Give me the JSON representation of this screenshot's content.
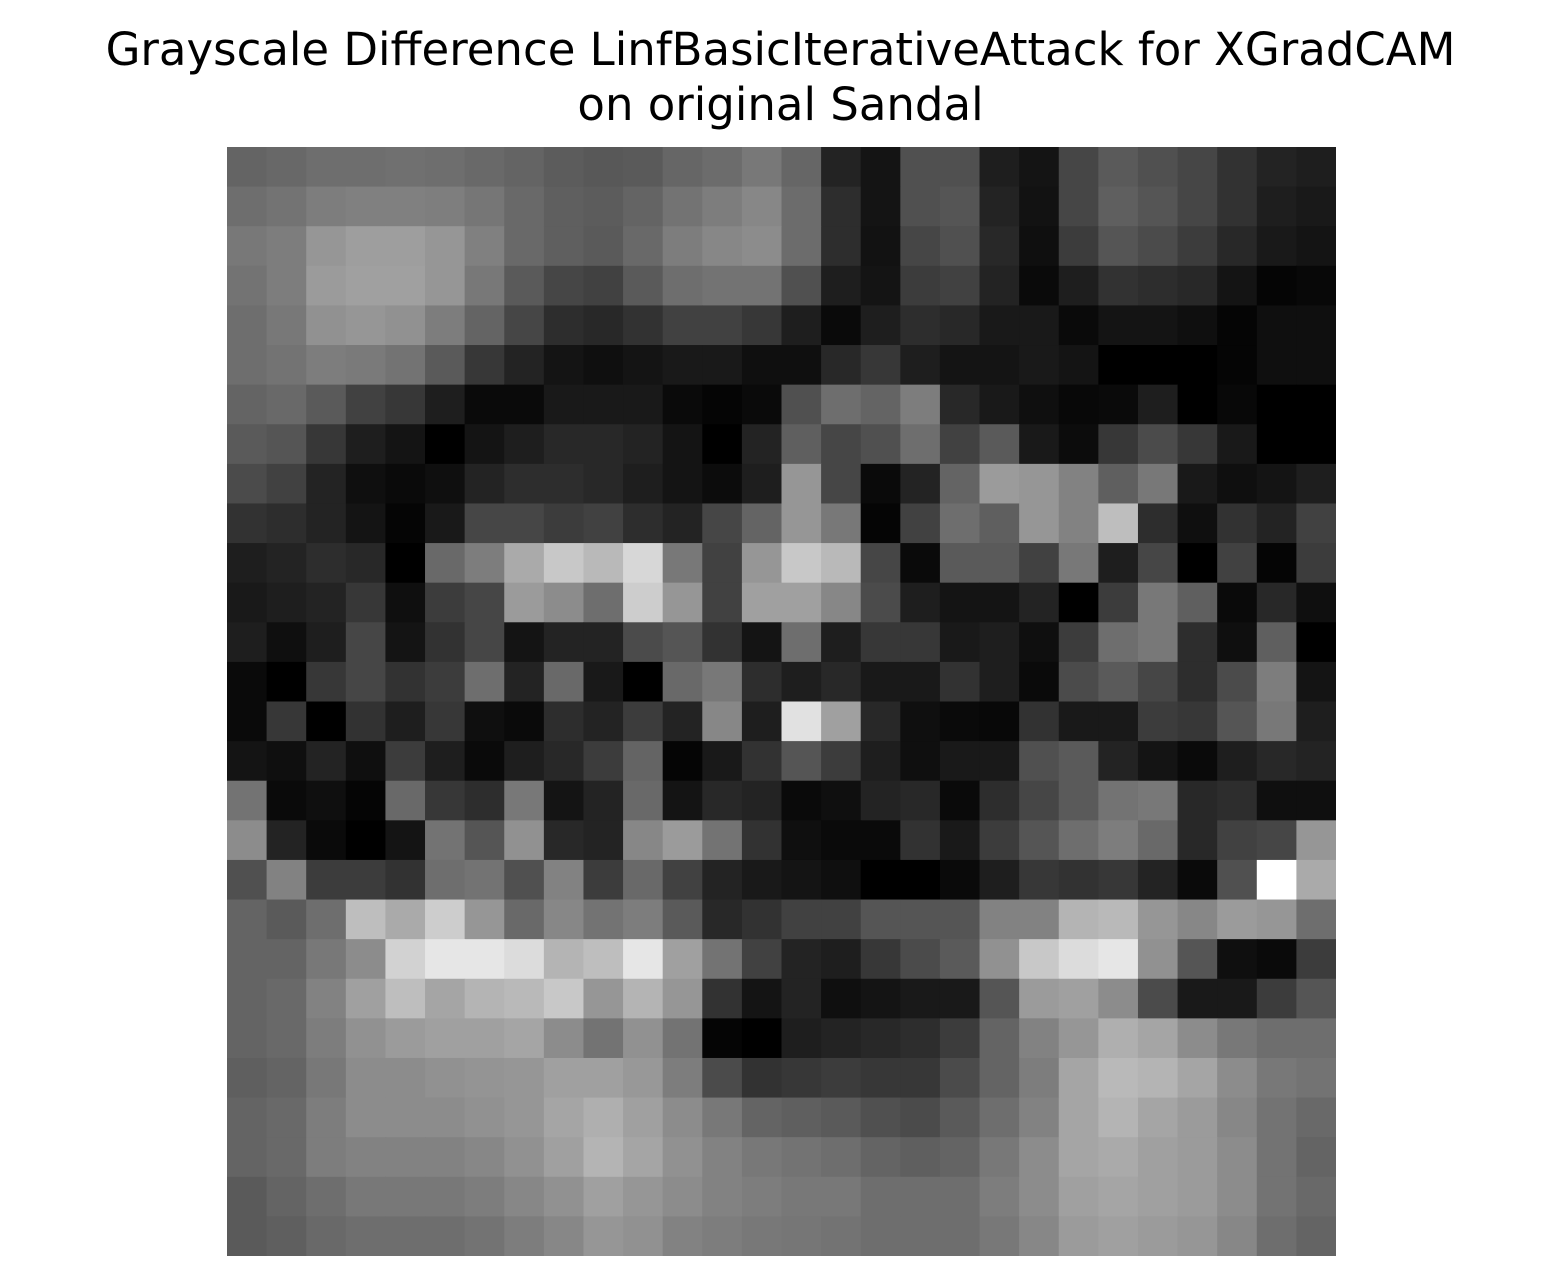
{
  "chart_data": {
    "type": "heatmap",
    "title_lines": [
      "Grayscale Difference LinfBasicIterativeAttack for XGradCAM",
      "on original Sandal"
    ],
    "colormap": "gray",
    "value_range": [
      0,
      255
    ],
    "axes_visible": false,
    "rows": 28,
    "cols": 28,
    "values": [
      [
        100,
        104,
        110,
        110,
        112,
        110,
        105,
        100,
        92,
        88,
        90,
        102,
        108,
        120,
        102,
        35,
        20,
        80,
        80,
        30,
        20,
        70,
        90,
        80,
        70,
        50,
        35,
        30
      ],
      [
        110,
        115,
        125,
        128,
        128,
        126,
        118,
        105,
        95,
        92,
        100,
        115,
        125,
        135,
        108,
        45,
        20,
        80,
        85,
        35,
        18,
        70,
        95,
        85,
        70,
        50,
        30,
        25
      ],
      [
        120,
        125,
        150,
        158,
        158,
        150,
        128,
        105,
        95,
        90,
        105,
        125,
        135,
        140,
        108,
        45,
        18,
        70,
        80,
        40,
        15,
        60,
        85,
        75,
        60,
        40,
        25,
        20
      ],
      [
        115,
        125,
        155,
        160,
        160,
        150,
        120,
        90,
        70,
        65,
        90,
        110,
        115,
        115,
        80,
        30,
        20,
        60,
        65,
        35,
        10,
        30,
        50,
        45,
        40,
        20,
        5,
        8
      ],
      [
        110,
        120,
        145,
        150,
        145,
        125,
        100,
        70,
        45,
        40,
        50,
        65,
        65,
        55,
        30,
        10,
        30,
        45,
        40,
        25,
        25,
        10,
        20,
        20,
        15,
        5,
        15,
        15
      ],
      [
        110,
        115,
        125,
        122,
        115,
        90,
        55,
        35,
        20,
        15,
        20,
        25,
        25,
        15,
        15,
        40,
        55,
        30,
        20,
        20,
        25,
        20,
        0,
        0,
        0,
        5,
        15,
        15
      ],
      [
        100,
        105,
        90,
        65,
        55,
        30,
        10,
        10,
        25,
        25,
        25,
        10,
        5,
        10,
        80,
        110,
        100,
        125,
        40,
        25,
        15,
        8,
        10,
        30,
        0,
        8,
        0,
        0
      ],
      [
        90,
        85,
        55,
        30,
        20,
        0,
        20,
        30,
        40,
        40,
        35,
        20,
        0,
        35,
        95,
        70,
        80,
        110,
        65,
        90,
        25,
        12,
        55,
        75,
        55,
        25,
        0,
        0
      ],
      [
        75,
        65,
        35,
        15,
        10,
        15,
        35,
        45,
        45,
        40,
        30,
        20,
        12,
        30,
        150,
        70,
        10,
        35,
        100,
        155,
        150,
        130,
        95,
        120,
        25,
        15,
        20,
        30
      ],
      [
        50,
        45,
        35,
        20,
        5,
        25,
        70,
        70,
        60,
        65,
        45,
        35,
        70,
        100,
        150,
        120,
        5,
        65,
        110,
        95,
        150,
        130,
        190,
        45,
        15,
        50,
        35,
        65
      ],
      [
        30,
        35,
        45,
        40,
        0,
        105,
        125,
        170,
        200,
        185,
        215,
        120,
        65,
        150,
        200,
        185,
        70,
        10,
        90,
        90,
        65,
        120,
        30,
        70,
        0,
        65,
        5,
        60
      ],
      [
        25,
        30,
        35,
        55,
        15,
        60,
        70,
        155,
        140,
        110,
        205,
        150,
        65,
        160,
        160,
        135,
        75,
        30,
        20,
        20,
        35,
        0,
        60,
        120,
        95,
        10,
        40,
        15
      ],
      [
        30,
        15,
        30,
        70,
        20,
        50,
        70,
        20,
        35,
        35,
        75,
        85,
        50,
        20,
        110,
        30,
        55,
        55,
        25,
        30,
        15,
        60,
        110,
        120,
        45,
        15,
        95,
        0
      ],
      [
        10,
        0,
        55,
        70,
        50,
        60,
        110,
        35,
        105,
        25,
        0,
        105,
        120,
        45,
        30,
        40,
        25,
        25,
        50,
        30,
        10,
        75,
        90,
        70,
        45,
        75,
        125,
        20
      ],
      [
        10,
        55,
        0,
        50,
        30,
        55,
        15,
        10,
        45,
        35,
        60,
        35,
        135,
        30,
        225,
        160,
        40,
        15,
        10,
        8,
        50,
        25,
        25,
        60,
        55,
        85,
        120,
        30
      ],
      [
        20,
        15,
        35,
        15,
        60,
        30,
        10,
        30,
        40,
        60,
        100,
        5,
        25,
        50,
        85,
        60,
        30,
        15,
        25,
        25,
        80,
        90,
        35,
        20,
        10,
        30,
        40,
        35
      ],
      [
        115,
        10,
        15,
        5,
        105,
        55,
        45,
        120,
        20,
        35,
        105,
        20,
        40,
        35,
        10,
        15,
        35,
        40,
        10,
        45,
        70,
        90,
        115,
        120,
        40,
        45,
        15,
        15
      ],
      [
        140,
        35,
        10,
        0,
        20,
        115,
        85,
        145,
        40,
        35,
        135,
        155,
        115,
        50,
        15,
        10,
        10,
        50,
        25,
        60,
        85,
        110,
        125,
        105,
        40,
        65,
        70,
        150
      ],
      [
        80,
        130,
        60,
        60,
        50,
        110,
        115,
        80,
        130,
        60,
        105,
        65,
        35,
        25,
        20,
        15,
        0,
        0,
        10,
        30,
        55,
        50,
        55,
        35,
        10,
        80,
        255,
        170
      ],
      [
        100,
        90,
        110,
        190,
        170,
        205,
        150,
        105,
        135,
        115,
        125,
        90,
        40,
        50,
        65,
        65,
        85,
        85,
        85,
        130,
        130,
        180,
        185,
        150,
        135,
        155,
        150,
        110
      ],
      [
        100,
        100,
        120,
        140,
        210,
        230,
        230,
        220,
        180,
        190,
        230,
        160,
        115,
        65,
        35,
        30,
        55,
        75,
        90,
        145,
        200,
        220,
        230,
        145,
        85,
        15,
        10,
        60
      ],
      [
        100,
        105,
        130,
        160,
        190,
        165,
        180,
        185,
        200,
        150,
        180,
        150,
        50,
        20,
        35,
        15,
        20,
        25,
        25,
        85,
        155,
        160,
        140,
        75,
        25,
        25,
        60,
        85
      ],
      [
        100,
        105,
        125,
        145,
        155,
        160,
        160,
        165,
        140,
        115,
        145,
        115,
        5,
        0,
        30,
        35,
        40,
        45,
        60,
        100,
        130,
        150,
        175,
        165,
        140,
        120,
        110,
        110
      ],
      [
        95,
        100,
        120,
        140,
        140,
        145,
        148,
        150,
        160,
        160,
        152,
        125,
        75,
        50,
        55,
        60,
        55,
        55,
        75,
        100,
        125,
        165,
        185,
        180,
        165,
        140,
        120,
        115
      ],
      [
        100,
        105,
        125,
        140,
        140,
        140,
        145,
        150,
        165,
        175,
        160,
        140,
        120,
        100,
        95,
        90,
        80,
        75,
        90,
        110,
        130,
        165,
        180,
        165,
        155,
        135,
        115,
        105
      ],
      [
        100,
        105,
        125,
        130,
        130,
        130,
        135,
        145,
        160,
        180,
        165,
        145,
        130,
        120,
        115,
        110,
        100,
        95,
        100,
        120,
        140,
        165,
        170,
        160,
        155,
        140,
        115,
        100
      ],
      [
        90,
        100,
        110,
        120,
        120,
        120,
        125,
        135,
        145,
        160,
        150,
        140,
        130,
        125,
        120,
        120,
        110,
        110,
        110,
        125,
        140,
        160,
        165,
        160,
        155,
        140,
        115,
        105
      ],
      [
        90,
        95,
        105,
        110,
        110,
        110,
        115,
        125,
        135,
        150,
        145,
        130,
        125,
        120,
        118,
        115,
        110,
        110,
        110,
        120,
        135,
        155,
        160,
        155,
        150,
        135,
        110,
        100
      ]
    ]
  }
}
